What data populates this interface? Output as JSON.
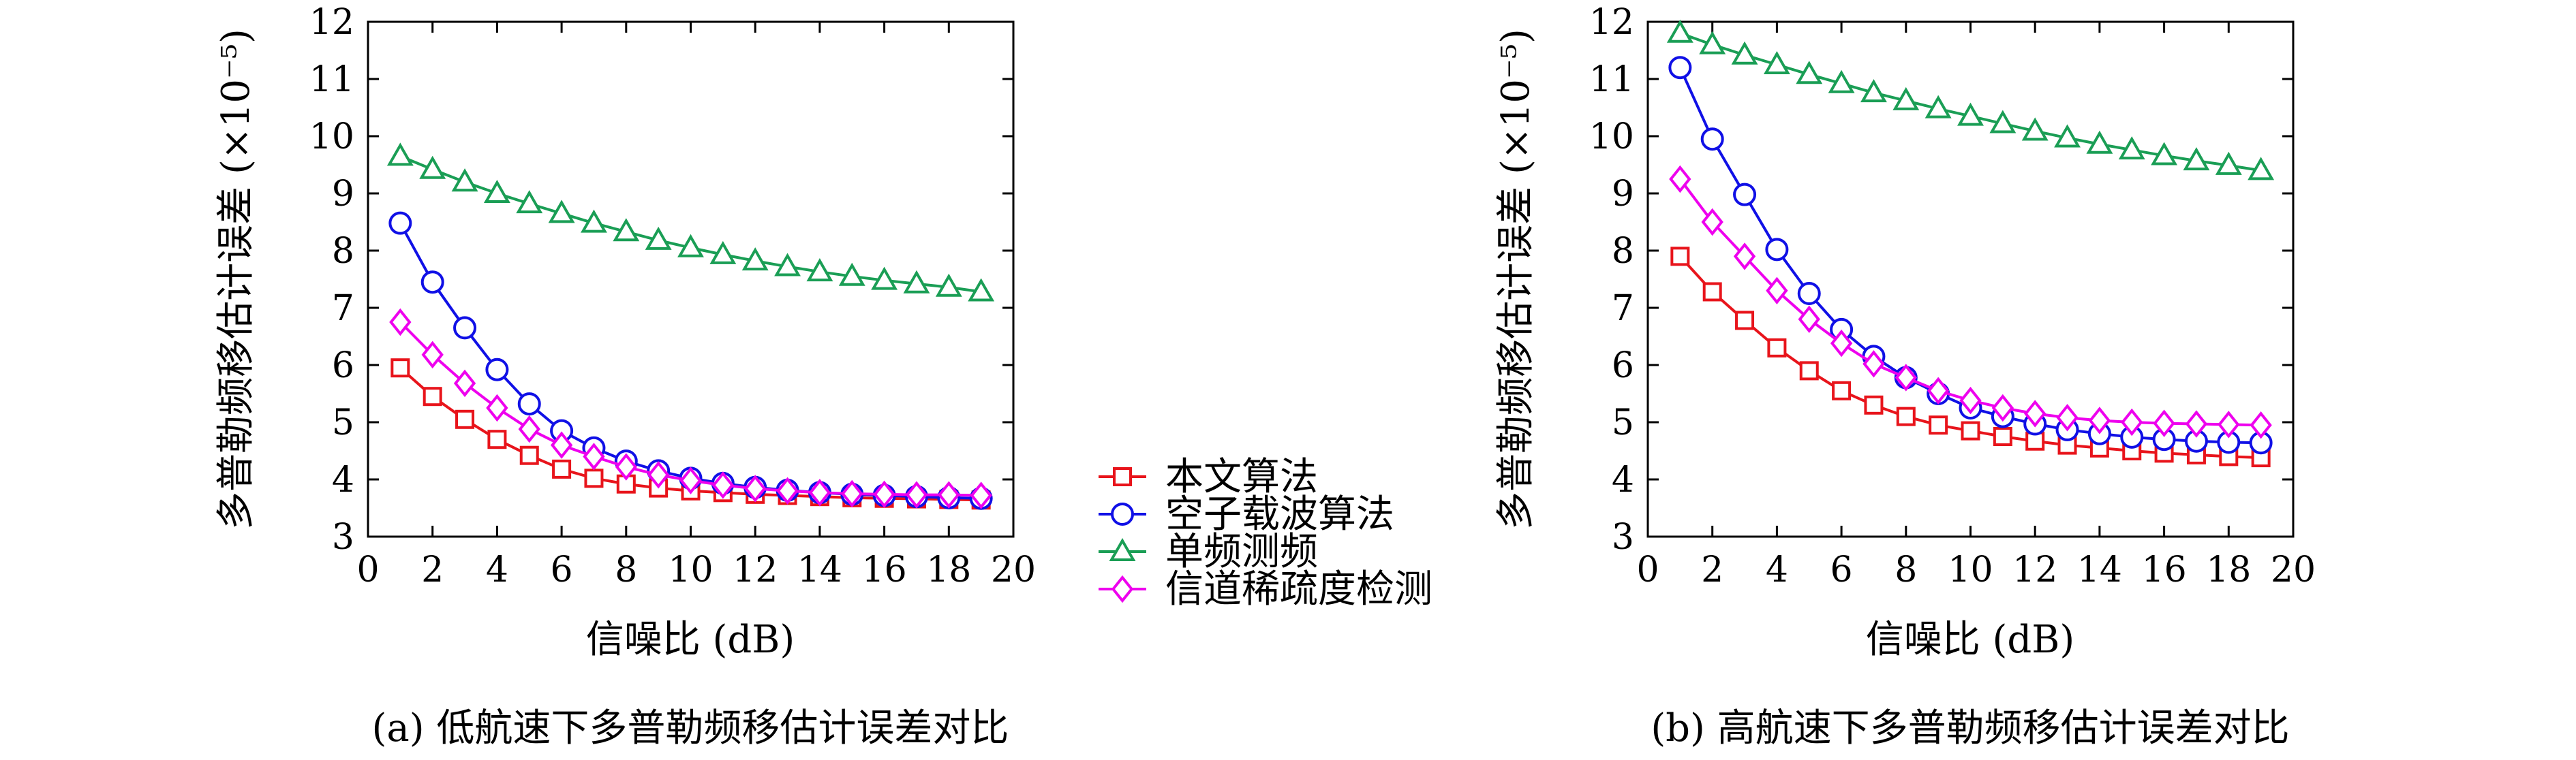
{
  "chart_data": [
    {
      "type": "line",
      "caption": "(a) 低航速下多普勒频移估计误差对比",
      "xlabel": "信噪比 (dB)",
      "ylabel": "多普勒频移估计误差 (×10⁻⁵)",
      "xlim": [
        0,
        20
      ],
      "ylim": [
        3,
        12
      ],
      "xticks": [
        0,
        2,
        4,
        6,
        8,
        10,
        12,
        14,
        16,
        18,
        20
      ],
      "yticks": [
        3,
        4,
        5,
        6,
        7,
        8,
        9,
        10,
        11,
        12
      ],
      "grid": false,
      "x": [
        1,
        2,
        3,
        4,
        5,
        6,
        7,
        8,
        9,
        10,
        11,
        12,
        13,
        14,
        15,
        16,
        17,
        18,
        19
      ],
      "series": [
        {
          "name": "本文算法",
          "values": [
            5.95,
            5.45,
            5.05,
            4.7,
            4.42,
            4.18,
            4.02,
            3.92,
            3.85,
            3.8,
            3.77,
            3.74,
            3.72,
            3.7,
            3.68,
            3.67,
            3.66,
            3.65,
            3.64
          ]
        },
        {
          "name": "空子载波算法",
          "values": [
            8.48,
            7.45,
            6.65,
            5.92,
            5.32,
            4.85,
            4.55,
            4.32,
            4.15,
            4.02,
            3.93,
            3.86,
            3.81,
            3.77,
            3.74,
            3.72,
            3.7,
            3.68,
            3.67
          ]
        },
        {
          "name": "单频测频",
          "values": [
            9.65,
            9.42,
            9.2,
            9.0,
            8.82,
            8.65,
            8.48,
            8.33,
            8.18,
            8.05,
            7.93,
            7.82,
            7.72,
            7.63,
            7.55,
            7.48,
            7.42,
            7.36,
            7.28
          ]
        },
        {
          "name": "信道稀疏度检测",
          "values": [
            6.75,
            6.18,
            5.68,
            5.25,
            4.88,
            4.6,
            4.4,
            4.22,
            4.08,
            3.98,
            3.9,
            3.84,
            3.8,
            3.77,
            3.75,
            3.74,
            3.73,
            3.73,
            3.72
          ]
        }
      ]
    },
    {
      "type": "line",
      "caption": "(b) 高航速下多普勒频移估计误差对比",
      "xlabel": "信噪比 (dB)",
      "ylabel": "多普勒频移估计误差 (×10⁻⁵)",
      "xlim": [
        0,
        20
      ],
      "ylim": [
        3,
        12
      ],
      "xticks": [
        0,
        2,
        4,
        6,
        8,
        10,
        12,
        14,
        16,
        18,
        20
      ],
      "yticks": [
        3,
        4,
        5,
        6,
        7,
        8,
        9,
        10,
        11,
        12
      ],
      "grid": false,
      "x": [
        1,
        2,
        3,
        4,
        5,
        6,
        7,
        8,
        9,
        10,
        11,
        12,
        13,
        14,
        15,
        16,
        17,
        18,
        19
      ],
      "series": [
        {
          "name": "本文算法",
          "values": [
            7.9,
            7.28,
            6.78,
            6.3,
            5.9,
            5.55,
            5.3,
            5.1,
            4.95,
            4.85,
            4.75,
            4.67,
            4.6,
            4.55,
            4.5,
            4.46,
            4.43,
            4.4,
            4.38
          ]
        },
        {
          "name": "空子载波算法",
          "values": [
            11.2,
            9.95,
            8.98,
            8.02,
            7.25,
            6.62,
            6.15,
            5.78,
            5.5,
            5.25,
            5.1,
            4.97,
            4.87,
            4.8,
            4.74,
            4.7,
            4.67,
            4.65,
            4.64
          ]
        },
        {
          "name": "单频测频",
          "values": [
            11.8,
            11.6,
            11.42,
            11.25,
            11.08,
            10.92,
            10.76,
            10.62,
            10.48,
            10.35,
            10.22,
            10.09,
            9.97,
            9.86,
            9.76,
            9.66,
            9.57,
            9.49,
            9.4
          ]
        },
        {
          "name": "信道稀疏度检测",
          "values": [
            9.25,
            8.5,
            7.9,
            7.3,
            6.8,
            6.38,
            6.02,
            5.78,
            5.55,
            5.38,
            5.25,
            5.15,
            5.08,
            5.03,
            5.0,
            4.98,
            4.97,
            4.96,
            4.95
          ]
        }
      ]
    }
  ],
  "legend": {
    "items": [
      {
        "label": "本文算法",
        "color": "#e8141b",
        "marker": "square"
      },
      {
        "label": "空子载波算法",
        "color": "#1010e6",
        "marker": "circle"
      },
      {
        "label": "单频测频",
        "color": "#1a9e55",
        "marker": "triangle"
      },
      {
        "label": "信道稀疏度检测",
        "color": "#ee00ee",
        "marker": "diamond"
      }
    ]
  }
}
